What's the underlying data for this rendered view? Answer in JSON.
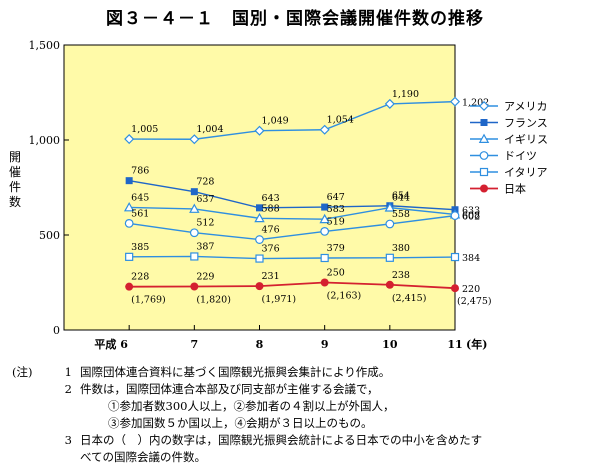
{
  "title": "図３－４－１　国別・国際会議開催件数の推移",
  "chart_data": {
    "type": "line",
    "categories": [
      "平成 6",
      "7",
      "8",
      "9",
      "10",
      "11"
    ],
    "x_unit": "(年)",
    "ylabel": "開催件数",
    "ylim": [
      0,
      1500
    ],
    "yticks": [
      0,
      500,
      1000,
      1500
    ],
    "ytick_labels": [
      "0",
      "500",
      "1,000",
      "1,500"
    ],
    "grid": false,
    "background": "#fffaa8",
    "legend_position": "right",
    "series": [
      {
        "name": "アメリカ",
        "marker": "diamond-open",
        "color": "#2f8fe0",
        "values": [
          1005,
          1004,
          1049,
          1054,
          1190,
          1202
        ],
        "labels": [
          "1,005",
          "1,004",
          "1,049",
          "1,054",
          "1,190",
          "1,202"
        ]
      },
      {
        "name": "フランス",
        "marker": "square-filled",
        "color": "#1f66c8",
        "values": [
          786,
          728,
          643,
          647,
          654,
          633
        ],
        "labels": [
          "786",
          "728",
          "643",
          "647",
          "654",
          "633"
        ]
      },
      {
        "name": "イギリス",
        "marker": "triangle-open",
        "color": "#2f8fe0",
        "values": [
          645,
          637,
          588,
          583,
          644,
          608
        ],
        "labels": [
          "645",
          "637",
          "588",
          "583",
          "644",
          "608"
        ]
      },
      {
        "name": "ドイツ",
        "marker": "circle-open",
        "color": "#2f8fe0",
        "values": [
          561,
          512,
          476,
          519,
          558,
          602
        ],
        "labels": [
          "561",
          "512",
          "476",
          "519",
          "558",
          "602"
        ]
      },
      {
        "name": "イタリア",
        "marker": "square-open",
        "color": "#2f8fe0",
        "values": [
          385,
          387,
          376,
          379,
          380,
          384
        ],
        "labels": [
          "385",
          "387",
          "376",
          "379",
          "380",
          "384"
        ]
      },
      {
        "name": "日本",
        "marker": "circle-filled",
        "color": "#d42030",
        "values": [
          228,
          229,
          231,
          250,
          238,
          220
        ],
        "labels": [
          "228",
          "229",
          "231",
          "250",
          "238",
          "220"
        ],
        "secondary_labels": [
          "(1,769)",
          "(1,820)",
          "(1,971)",
          "(2,163)",
          "(2,415)",
          "(2,475)"
        ]
      }
    ]
  },
  "notes": {
    "prefix": "(注)",
    "items": [
      {
        "num": "1",
        "lines": [
          "国際団体連合資料に基づく国際観光振興会集計により作成。"
        ]
      },
      {
        "num": "2",
        "lines": [
          "件数は，国際団体連合本部及び同支部が主催する会議で，",
          "①参加者数300人以上，②参加者の４割以上が外国人，",
          "③参加国数５か国以上，④会期が３日以上のもの。"
        ]
      },
      {
        "num": "3",
        "lines": [
          "日本の（　）内の数字は，国際観光振興会統計による日本での中小を含めたす",
          "べての国際会議の件数。"
        ]
      }
    ]
  }
}
